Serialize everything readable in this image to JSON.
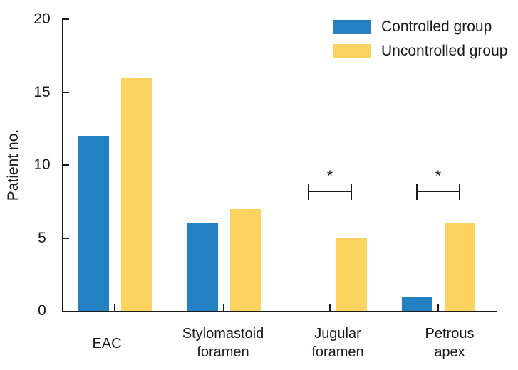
{
  "chart_data": {
    "type": "bar",
    "title": "",
    "ylabel": "Patient no.",
    "xlabel": "",
    "ylim": [
      0,
      20
    ],
    "yticks": [
      0,
      5,
      10,
      15,
      20
    ],
    "grid": false,
    "legend_position": "top-right",
    "categories": [
      "EAC",
      "Stylomastoid foramen",
      "Jugular foramen",
      "Petrous apex"
    ],
    "category_lines": [
      [
        "EAC"
      ],
      [
        "Stylomastoid",
        "foramen"
      ],
      [
        "Jugular",
        "foramen"
      ],
      [
        "Petrous",
        "apex"
      ]
    ],
    "series": [
      {
        "name": "Controlled group",
        "color": "#2380c3",
        "values": [
          12,
          6,
          0,
          1
        ]
      },
      {
        "name": "Uncontrolled group",
        "color": "#fcd35f",
        "values": [
          16,
          7,
          5,
          6
        ]
      }
    ],
    "significance_markers": [
      {
        "category": "Jugular foramen",
        "category_index": 2,
        "label": "*"
      },
      {
        "category": "Petrous apex",
        "category_index": 3,
        "label": "*"
      }
    ],
    "axis_color": "#1a1a1a",
    "text_color": "#1a1a1a",
    "background_color": "#ffffff"
  },
  "legend": {
    "items": [
      {
        "label": "Controlled group",
        "color": "#2380c3"
      },
      {
        "label": "Uncontrolled group",
        "color": "#fcd35f"
      }
    ]
  }
}
